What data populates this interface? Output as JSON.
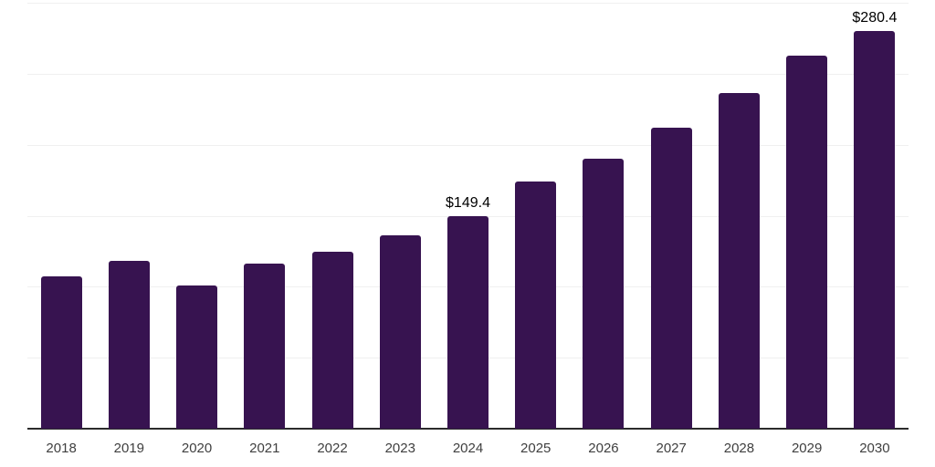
{
  "chart_data": {
    "type": "bar",
    "title": "",
    "xlabel": "",
    "ylabel": "",
    "categories": [
      "2018",
      "2019",
      "2020",
      "2021",
      "2022",
      "2023",
      "2024",
      "2025",
      "2026",
      "2027",
      "2028",
      "2029",
      "2030"
    ],
    "values": [
      107.5,
      118.3,
      101.0,
      116.0,
      124.8,
      136.2,
      149.4,
      174.0,
      190.4,
      211.8,
      236.5,
      262.8,
      280.4
    ],
    "data_labels": [
      {
        "category": "2024",
        "text": "$149.4"
      },
      {
        "category": "2030",
        "text": "$280.4"
      }
    ],
    "ylim": [
      0,
      300
    ],
    "gridline_step": 50,
    "grid": true,
    "legend": "none",
    "colors": {
      "bar": "#371350",
      "gridline": "#f0f0f0",
      "axis_line": "#2b2b2b",
      "tick_label": "#3f3f3f",
      "value_label": "#000000",
      "background": "#ffffff"
    }
  }
}
